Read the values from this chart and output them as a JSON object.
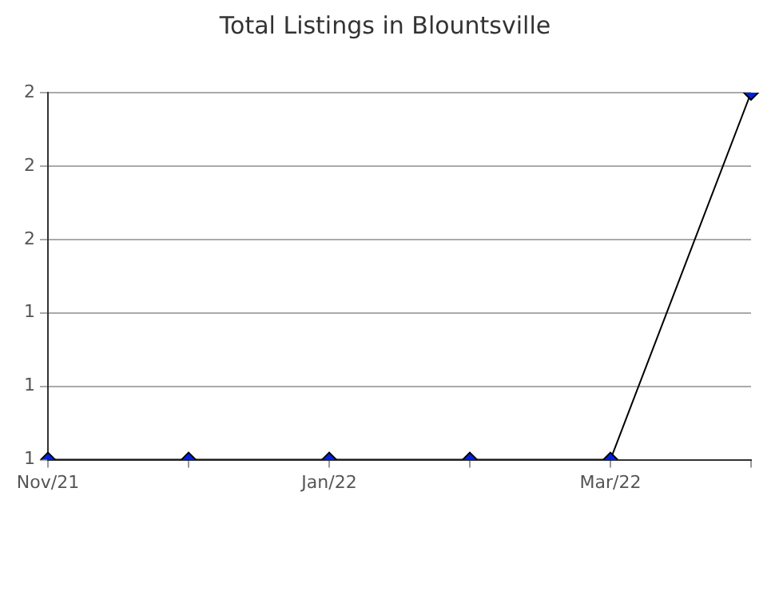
{
  "chart_data": {
    "type": "line",
    "title": "Total Listings in Blountsville",
    "categories": [
      "Nov/21",
      null,
      "Jan/22",
      null,
      "Mar/22",
      null
    ],
    "series": [
      {
        "color": "#0022dd",
        "values": [
          1,
          1,
          1,
          1,
          1,
          2
        ]
      }
    ],
    "ylim": [
      1,
      2
    ],
    "yticks": [
      {
        "value": 1,
        "label": "1"
      },
      {
        "value": 1.2,
        "label": "1"
      },
      {
        "value": 1.4,
        "label": "1"
      },
      {
        "value": 1.6,
        "label": "2"
      },
      {
        "value": 1.8,
        "label": "2"
      },
      {
        "value": 2,
        "label": "2"
      }
    ],
    "grid": "y",
    "legend": false,
    "marker": "diamond",
    "line_style": "solid"
  }
}
